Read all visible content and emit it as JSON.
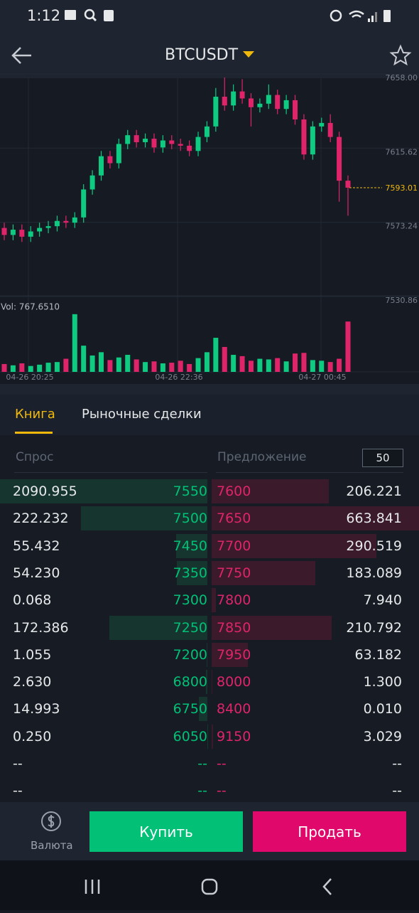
{
  "status_bar": {
    "time": "1:12"
  },
  "header": {
    "title": "BTCUSDT"
  },
  "price_chart": {
    "type": "candlestick",
    "up_color": "#0ecb81",
    "down_color": "#e0246a",
    "ylim": [
      7529.6,
      7658.0
    ],
    "yticks": [
      {
        "value": 7658.0,
        "label": "7658.00"
      },
      {
        "value": 7615.62,
        "label": "7615.62"
      },
      {
        "value": 7573.24,
        "label": "7573.24"
      },
      {
        "value": 7530.86,
        "label": "7530.86"
      }
    ],
    "last_price": {
      "value": 7593.01,
      "label": "7593.01"
    },
    "x_labels": [
      "04-26 20:25",
      "04-26 22:36",
      "04-27 00:45"
    ],
    "open": [
      7570,
      7566,
      7569,
      7565,
      7568,
      7570,
      7571,
      7574,
      7573,
      7576,
      7592,
      7600,
      7611,
      7607,
      7618,
      7623,
      7619,
      7621,
      7616,
      7620,
      7618,
      7617,
      7614,
      7622,
      7628,
      7645,
      7640,
      7648,
      7644,
      7639,
      7641,
      7646,
      7638,
      7643,
      7632,
      7612,
      7628,
      7630,
      7622,
      7597
    ],
    "high": [
      7573,
      7572,
      7572,
      7571,
      7573,
      7574,
      7577,
      7577,
      7579,
      7595,
      7603,
      7614,
      7614,
      7621,
      7626,
      7626,
      7624,
      7624,
      7623,
      7623,
      7621,
      7620,
      7625,
      7631,
      7650,
      7656,
      7652,
      7655,
      7647,
      7644,
      7652,
      7649,
      7646,
      7646,
      7635,
      7631,
      7633,
      7635,
      7625,
      7600
    ],
    "low": [
      7563,
      7563,
      7562,
      7562,
      7565,
      7567,
      7568,
      7570,
      7570,
      7573,
      7589,
      7597,
      7604,
      7604,
      7615,
      7616,
      7616,
      7613,
      7613,
      7615,
      7614,
      7611,
      7611,
      7619,
      7625,
      7637,
      7637,
      7641,
      7628,
      7636,
      7638,
      7635,
      7635,
      7629,
      7609,
      7609,
      7625,
      7619,
      7585,
      7577
    ],
    "close": [
      7566,
      7569,
      7565,
      7568,
      7570,
      7571,
      7574,
      7573,
      7576,
      7592,
      7600,
      7611,
      7607,
      7618,
      7623,
      7619,
      7621,
      7616,
      7620,
      7618,
      7617,
      7614,
      7622,
      7628,
      7645,
      7640,
      7648,
      7644,
      7639,
      7641,
      7646,
      7638,
      7643,
      7632,
      7612,
      7628,
      7630,
      7622,
      7597,
      7593.01
    ],
    "volume_label": "Vol: 767.6510",
    "volume_ylim": [
      0,
      900
    ],
    "volume": [
      120,
      100,
      130,
      90,
      110,
      140,
      150,
      200,
      880,
      400,
      250,
      300,
      180,
      220,
      260,
      190,
      150,
      160,
      130,
      140,
      170,
      120,
      210,
      300,
      520,
      380,
      260,
      240,
      170,
      200,
      190,
      210,
      160,
      280,
      290,
      180,
      170,
      150,
      200,
      767.651
    ]
  },
  "tabs": [
    "Книга",
    "Рыночные сделки"
  ],
  "order_book": {
    "bid_header": "Спрос",
    "ask_header": "Предложение",
    "depth": 50,
    "rows": [
      {
        "bid_amount": "2090.955",
        "bid_price": "7550",
        "ask_price": "7600",
        "ask_amount": "206.221"
      },
      {
        "bid_amount": "222.232",
        "bid_price": "7500",
        "ask_price": "7650",
        "ask_amount": "663.841"
      },
      {
        "bid_amount": "55.432",
        "bid_price": "7450",
        "ask_price": "7700",
        "ask_amount": "290.519"
      },
      {
        "bid_amount": "54.230",
        "bid_price": "7350",
        "ask_price": "7750",
        "ask_amount": "183.089"
      },
      {
        "bid_amount": "0.068",
        "bid_price": "7300",
        "ask_price": "7800",
        "ask_amount": "7.940"
      },
      {
        "bid_amount": "172.386",
        "bid_price": "7250",
        "ask_price": "7850",
        "ask_amount": "210.792"
      },
      {
        "bid_amount": "1.055",
        "bid_price": "7200",
        "ask_price": "7950",
        "ask_amount": "63.182"
      },
      {
        "bid_amount": "2.630",
        "bid_price": "6800",
        "ask_price": "8000",
        "ask_amount": "1.300"
      },
      {
        "bid_amount": "14.993",
        "bid_price": "6750",
        "ask_price": "8400",
        "ask_amount": "0.010"
      },
      {
        "bid_amount": "0.250",
        "bid_price": "6050",
        "ask_price": "9150",
        "ask_amount": "3.029"
      },
      {
        "bid_amount": "--",
        "bid_price": "--",
        "ask_price": "--",
        "ask_amount": "--"
      },
      {
        "bid_amount": "--",
        "bid_price": "--",
        "ask_price": "--",
        "ask_amount": "--"
      }
    ]
  },
  "bottom_bar": {
    "currency": "Валюта",
    "buy": "Купить",
    "sell": "Продать"
  }
}
